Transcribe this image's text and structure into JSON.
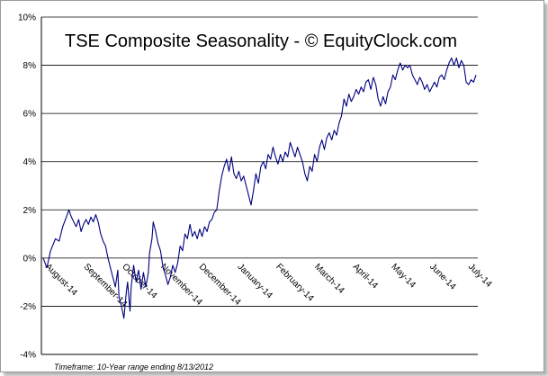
{
  "chart_data": {
    "type": "line",
    "title": "TSE Composite Seasonality - © EquityClock.com",
    "footnote": "Timeframe: 10-Year range ending 8/13/2012",
    "xlabel": "",
    "ylabel": "",
    "ylim": [
      -4,
      10
    ],
    "y_ticks": [
      "10%",
      "8%",
      "6%",
      "4%",
      "2%",
      "0%",
      "-2%",
      "-4%"
    ],
    "y_tick_values": [
      10,
      8,
      6,
      4,
      2,
      0,
      -2,
      -4
    ],
    "x_tick_labels": [
      "August-14",
      "September-14",
      "October-14",
      "November-14",
      "December-14",
      "January-14",
      "February-14",
      "March-14",
      "April-14",
      "May-14",
      "June-14",
      "July-14"
    ],
    "grid": "horizontal",
    "line_color": "#000080",
    "series": [
      {
        "values": [
          [
            0,
            0.0
          ],
          [
            3,
            -0.4
          ],
          [
            6,
            0.3
          ],
          [
            10,
            0.8
          ],
          [
            13,
            0.7
          ],
          [
            16,
            1.3
          ],
          [
            19,
            1.7
          ],
          [
            21,
            2.0
          ],
          [
            23,
            1.7
          ],
          [
            25,
            1.5
          ],
          [
            27,
            1.3
          ],
          [
            29,
            1.6
          ],
          [
            31,
            1.1
          ],
          [
            33,
            1.4
          ],
          [
            35,
            1.6
          ],
          [
            37,
            1.4
          ],
          [
            39,
            1.7
          ],
          [
            41,
            1.5
          ],
          [
            43,
            1.8
          ],
          [
            45,
            1.5
          ],
          [
            47,
            1.0
          ],
          [
            49,
            0.7
          ],
          [
            51,
            0.5
          ],
          [
            53,
            0.0
          ],
          [
            55,
            -0.4
          ],
          [
            57,
            -0.8
          ],
          [
            59,
            -1.2
          ],
          [
            61,
            -0.5
          ],
          [
            62,
            -1.6
          ],
          [
            64,
            -2.0
          ],
          [
            66,
            -2.5
          ],
          [
            68,
            -1.4
          ],
          [
            69,
            -1.0
          ],
          [
            71,
            -2.2
          ],
          [
            72,
            -1.2
          ],
          [
            74,
            -0.3
          ],
          [
            76,
            -1.0
          ],
          [
            78,
            -0.5
          ],
          [
            80,
            -1.3
          ],
          [
            82,
            -0.6
          ],
          [
            84,
            -1.2
          ],
          [
            86,
            -0.6
          ],
          [
            87,
            0.2
          ],
          [
            89,
            0.8
          ],
          [
            90,
            1.5
          ],
          [
            92,
            1.1
          ],
          [
            94,
            0.6
          ],
          [
            96,
            0.3
          ],
          [
            98,
            -0.4
          ],
          [
            100,
            -0.7
          ],
          [
            102,
            -1.1
          ],
          [
            104,
            -0.8
          ],
          [
            106,
            -0.3
          ],
          [
            108,
            -0.6
          ],
          [
            110,
            -0.2
          ],
          [
            112,
            0.5
          ],
          [
            114,
            0.3
          ],
          [
            116,
            1.0
          ],
          [
            118,
            0.8
          ],
          [
            120,
            1.4
          ],
          [
            122,
            0.9
          ],
          [
            124,
            1.1
          ],
          [
            126,
            0.8
          ],
          [
            128,
            1.2
          ],
          [
            130,
            0.9
          ],
          [
            132,
            1.3
          ],
          [
            134,
            1.1
          ],
          [
            136,
            1.5
          ],
          [
            138,
            1.6
          ],
          [
            140,
            1.9
          ],
          [
            142,
            2.0
          ],
          [
            144,
            2.8
          ],
          [
            146,
            3.4
          ],
          [
            148,
            3.8
          ],
          [
            150,
            4.1
          ],
          [
            152,
            3.6
          ],
          [
            154,
            4.2
          ],
          [
            156,
            3.5
          ],
          [
            158,
            3.3
          ],
          [
            160,
            3.6
          ],
          [
            162,
            3.2
          ],
          [
            164,
            3.4
          ],
          [
            166,
            3.0
          ],
          [
            168,
            2.6
          ],
          [
            170,
            2.2
          ],
          [
            172,
            2.8
          ],
          [
            174,
            3.5
          ],
          [
            176,
            3.1
          ],
          [
            178,
            3.8
          ],
          [
            180,
            4.0
          ],
          [
            182,
            3.7
          ],
          [
            184,
            4.3
          ],
          [
            186,
            4.1
          ],
          [
            188,
            4.6
          ],
          [
            190,
            4.2
          ],
          [
            192,
            3.9
          ],
          [
            194,
            4.3
          ],
          [
            196,
            4.0
          ],
          [
            198,
            4.4
          ],
          [
            200,
            4.2
          ],
          [
            202,
            4.8
          ],
          [
            204,
            4.5
          ],
          [
            206,
            4.2
          ],
          [
            208,
            4.6
          ],
          [
            210,
            4.3
          ],
          [
            212,
            4.0
          ],
          [
            214,
            3.5
          ],
          [
            216,
            3.2
          ],
          [
            218,
            3.8
          ],
          [
            220,
            3.6
          ],
          [
            222,
            4.3
          ],
          [
            224,
            4.0
          ],
          [
            226,
            4.6
          ],
          [
            228,
            4.9
          ],
          [
            230,
            4.5
          ],
          [
            232,
            5.0
          ],
          [
            234,
            5.2
          ],
          [
            236,
            4.9
          ],
          [
            238,
            5.3
          ],
          [
            240,
            5.1
          ],
          [
            242,
            5.6
          ],
          [
            244,
            5.9
          ],
          [
            246,
            6.6
          ],
          [
            248,
            6.3
          ],
          [
            250,
            6.8
          ],
          [
            252,
            6.5
          ],
          [
            254,
            6.7
          ],
          [
            256,
            7.0
          ],
          [
            258,
            6.8
          ],
          [
            260,
            7.1
          ],
          [
            262,
            6.9
          ],
          [
            264,
            7.3
          ],
          [
            266,
            7.4
          ],
          [
            268,
            7.0
          ],
          [
            270,
            7.5
          ],
          [
            272,
            7.2
          ],
          [
            274,
            6.6
          ],
          [
            276,
            6.3
          ],
          [
            278,
            6.7
          ],
          [
            280,
            6.4
          ],
          [
            282,
            6.9
          ],
          [
            284,
            7.1
          ],
          [
            286,
            7.6
          ],
          [
            288,
            7.4
          ],
          [
            290,
            7.8
          ],
          [
            292,
            8.1
          ],
          [
            294,
            7.8
          ],
          [
            296,
            8.0
          ],
          [
            298,
            7.9
          ],
          [
            300,
            8.0
          ],
          [
            302,
            7.6
          ],
          [
            304,
            7.4
          ],
          [
            306,
            7.2
          ],
          [
            308,
            7.5
          ],
          [
            310,
            7.3
          ],
          [
            312,
            7.0
          ],
          [
            314,
            7.2
          ],
          [
            316,
            6.9
          ],
          [
            318,
            7.1
          ],
          [
            320,
            7.3
          ],
          [
            322,
            7.1
          ],
          [
            324,
            7.5
          ],
          [
            326,
            7.6
          ],
          [
            328,
            7.4
          ],
          [
            330,
            7.8
          ],
          [
            332,
            8.1
          ],
          [
            334,
            8.3
          ],
          [
            336,
            8.0
          ],
          [
            338,
            8.3
          ],
          [
            340,
            7.9
          ],
          [
            342,
            8.2
          ],
          [
            344,
            8.0
          ],
          [
            346,
            7.3
          ],
          [
            348,
            7.2
          ],
          [
            350,
            7.4
          ],
          [
            352,
            7.3
          ],
          [
            354,
            7.6
          ]
        ]
      }
    ]
  }
}
